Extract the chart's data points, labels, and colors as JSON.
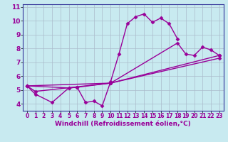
{
  "background_color": "#c8eaf0",
  "grid_color": "#aabbcc",
  "line_color": "#990099",
  "marker": "D",
  "markersize": 2.5,
  "linewidth": 1.0,
  "xlim": [
    -0.5,
    23.5
  ],
  "ylim": [
    3.5,
    11.2
  ],
  "yticks": [
    4,
    5,
    6,
    7,
    8,
    9,
    10,
    11
  ],
  "xticks": [
    0,
    1,
    2,
    3,
    4,
    5,
    6,
    7,
    8,
    9,
    10,
    11,
    12,
    13,
    14,
    15,
    16,
    17,
    18,
    19,
    20,
    21,
    22,
    23
  ],
  "xlabel": "Windchill (Refroidissement éolien,°C)",
  "xlabel_fontsize": 6.5,
  "ytick_fontsize": 6.5,
  "xtick_fontsize": 5.5,
  "series": [
    [
      [
        0,
        5.3
      ],
      [
        1,
        4.7
      ],
      [
        3,
        4.1
      ],
      [
        5,
        5.15
      ],
      [
        6,
        5.2
      ],
      [
        7,
        4.1
      ],
      [
        8,
        4.2
      ],
      [
        9,
        3.85
      ],
      [
        10,
        5.6
      ],
      [
        11,
        7.6
      ],
      [
        12,
        9.8
      ],
      [
        13,
        10.3
      ],
      [
        14,
        10.5
      ],
      [
        15,
        9.9
      ],
      [
        16,
        10.2
      ],
      [
        17,
        9.8
      ],
      [
        18,
        8.7
      ]
    ],
    [
      [
        0,
        5.3
      ],
      [
        5,
        5.15
      ],
      [
        6,
        5.2
      ],
      [
        10,
        5.5
      ],
      [
        18,
        8.4
      ],
      [
        19,
        7.6
      ],
      [
        20,
        7.5
      ],
      [
        21,
        8.1
      ],
      [
        22,
        7.9
      ],
      [
        23,
        7.5
      ]
    ],
    [
      [
        0,
        5.3
      ],
      [
        1,
        4.9
      ],
      [
        10,
        5.5
      ],
      [
        23,
        7.5
      ]
    ],
    [
      [
        0,
        5.3
      ],
      [
        10,
        5.5
      ],
      [
        23,
        7.3
      ]
    ]
  ]
}
